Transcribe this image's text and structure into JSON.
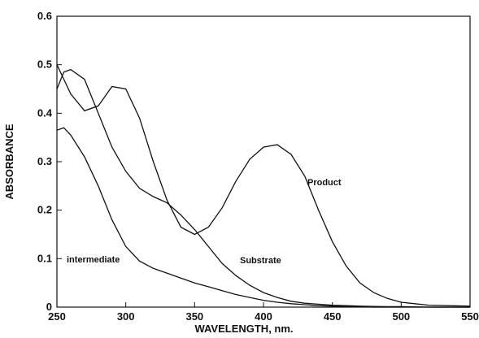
{
  "chart_data": {
    "type": "line",
    "xlabel": "WAVELENGTH, nm.",
    "ylabel": "ABSORBANCE",
    "x": [
      250,
      255,
      260,
      270,
      280,
      290,
      300,
      310,
      320,
      330,
      340,
      350,
      360,
      370,
      380,
      390,
      400,
      410,
      420,
      430,
      440,
      450,
      460,
      470,
      480,
      490,
      500,
      520,
      550
    ],
    "series": [
      {
        "name": "Product",
        "color": "#111111",
        "values": [
          0.5,
          0.47,
          0.44,
          0.405,
          0.415,
          0.455,
          0.45,
          0.39,
          0.3,
          0.22,
          0.165,
          0.15,
          0.165,
          0.205,
          0.26,
          0.305,
          0.33,
          0.335,
          0.315,
          0.27,
          0.2,
          0.135,
          0.085,
          0.05,
          0.03,
          0.018,
          0.01,
          0.004,
          0.002
        ]
      },
      {
        "name": "Substrate",
        "color": "#111111",
        "values": [
          0.45,
          0.485,
          0.49,
          0.47,
          0.4,
          0.33,
          0.28,
          0.245,
          0.228,
          0.215,
          0.19,
          0.16,
          0.125,
          0.09,
          0.065,
          0.045,
          0.03,
          0.02,
          0.012,
          0.008,
          0.006,
          0.004,
          0.003,
          0.002,
          0.0015,
          0.001,
          0.001,
          0.0,
          0.0
        ]
      },
      {
        "name": "intermediate",
        "color": "#111111",
        "values": [
          0.365,
          0.37,
          0.355,
          0.31,
          0.25,
          0.18,
          0.125,
          0.095,
          0.08,
          0.07,
          0.06,
          0.05,
          0.042,
          0.034,
          0.026,
          0.02,
          0.014,
          0.01,
          0.007,
          0.005,
          0.003,
          0.002,
          0.001,
          0.001,
          0.0,
          0.0,
          0.0,
          0.0,
          0.0
        ]
      }
    ],
    "xlim": [
      250,
      550
    ],
    "xticks": [
      250,
      300,
      350,
      400,
      450,
      500,
      550
    ],
    "ylim": [
      0,
      0.6
    ],
    "yticks": [
      0,
      0.1,
      0.2,
      0.3,
      0.4,
      0.5,
      0.6
    ],
    "grid": false
  }
}
